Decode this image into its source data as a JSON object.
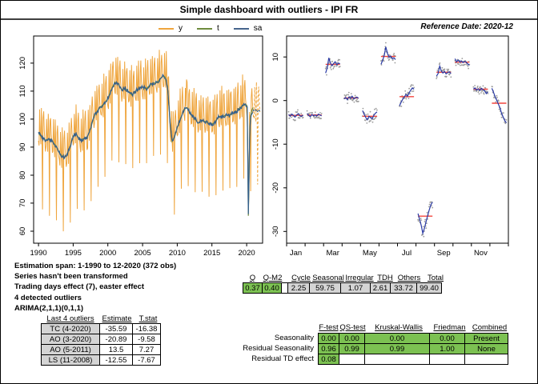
{
  "window": {
    "title": "Simple dashboard with outliers - IPI FR",
    "reference_date": "Reference Date: 2020-12"
  },
  "legend": {
    "items": [
      {
        "label": "y",
        "color": "#efa53d"
      },
      {
        "label": "t",
        "color": "#6e8b3d"
      },
      {
        "label": "sa",
        "color": "#46648c"
      }
    ]
  },
  "summary": {
    "lines": [
      "Estimation span: 1-1990 to 12-2020 (372 obs)",
      "Series hasn't been transformed",
      "Trading days effect (7), easter effect",
      "4 detected outliers",
      "ARIMA(2,1,1)(0,1,1)"
    ]
  },
  "outliers": {
    "headers": [
      "Last 4 outliers",
      "Estimate",
      "T.stat"
    ],
    "rows": [
      [
        "TC (4-2020)",
        "-35.59",
        "-16.38"
      ],
      [
        "AO (3-2020)",
        "-20.89",
        "-9.58"
      ],
      [
        "AO (5-2011)",
        "13.5",
        "7.27"
      ],
      [
        "LS (11-2008)",
        "-12.55",
        "-7.67"
      ]
    ]
  },
  "q_stats": {
    "headers": [
      "Q",
      "Q-M2",
      "Cycle",
      "Seasonal",
      "Irregular",
      "TDH",
      "Others",
      "Total"
    ],
    "values": [
      "0.37",
      "0.40",
      "2.25",
      "59.75",
      "1.07",
      "2.61",
      "33.72",
      "99.40"
    ]
  },
  "tests": {
    "col_headers": [
      "F-test",
      "QS-test",
      "Kruskal-Wallis",
      "Friedman",
      "Combined"
    ],
    "rows": [
      {
        "label": "Seasonality",
        "values": [
          "0.00",
          "0.00",
          "0.00",
          "0.00",
          "Present"
        ]
      },
      {
        "label": "Residual Seasonality",
        "values": [
          "0.96",
          "0.99",
          "0.99",
          "1.00",
          "None"
        ]
      },
      {
        "label": "Residual TD effect",
        "values": [
          "0.08",
          "",
          "",
          "",
          ""
        ]
      }
    ]
  },
  "colors": {
    "series_y": "#efa53d",
    "series_t": "#6e8b3d",
    "series_sa": "#35608d",
    "subseries_line": "#2a3aa6",
    "subseries_mean": "#f2453d",
    "subseries_dots": "#9c9c9c",
    "cell_green": "#7cc152",
    "cell_gray": "#d4d4d4"
  },
  "chart_data": [
    {
      "type": "line",
      "title": "Raw (y), trend (t) and seasonally adjusted (sa) series, monthly 1-1990 to 12-2020, dashed 12-month forecast",
      "x_ticks": [
        1990,
        1995,
        2000,
        2005,
        2010,
        2015,
        2020
      ],
      "y_ticks": [
        60,
        70,
        80,
        90,
        100,
        110,
        120
      ],
      "xlim": [
        1989.3,
        2022.3
      ],
      "ylim": [
        55.7,
        129.7
      ],
      "seasonal_factors": [
        -3.4,
        -3.3,
        8.3,
        0.6,
        -3.6,
        10.1,
        0.9,
        -26.5,
        6.5,
        8.8,
        2.6,
        -0.6
      ],
      "trend_anchors": [
        [
          1990,
          95
        ],
        [
          1990.5,
          93.5
        ],
        [
          1991,
          92.5
        ],
        [
          1991.5,
          92.8
        ],
        [
          1992,
          92
        ],
        [
          1992.5,
          90.5
        ],
        [
          1993,
          88
        ],
        [
          1993.6,
          86.3
        ],
        [
          1994,
          87
        ],
        [
          1994.5,
          89.5
        ],
        [
          1995,
          94
        ],
        [
          1995.4,
          94.8
        ],
        [
          1996,
          92.5
        ],
        [
          1996.5,
          93
        ],
        [
          1997,
          93.5
        ],
        [
          1997.5,
          96.5
        ],
        [
          1998,
          101
        ],
        [
          1998.5,
          103
        ],
        [
          1999,
          104.5
        ],
        [
          1999.5,
          105.5
        ],
        [
          2000,
          107.5
        ],
        [
          2000.5,
          110.5
        ],
        [
          2001,
          113.2
        ],
        [
          2001.5,
          112.5
        ],
        [
          2002,
          110.5
        ],
        [
          2002.5,
          111
        ],
        [
          2003,
          109.8
        ],
        [
          2003.5,
          108.5
        ],
        [
          2004,
          110
        ],
        [
          2004.5,
          111
        ],
        [
          2005,
          111.5
        ],
        [
          2005.5,
          110.8
        ],
        [
          2006,
          112
        ],
        [
          2006.5,
          112.8
        ],
        [
          2007,
          113
        ],
        [
          2007.5,
          114.2
        ],
        [
          2008,
          115.5
        ],
        [
          2008.25,
          115
        ],
        [
          2008.6,
          111.5
        ],
        [
          2009,
          98
        ],
        [
          2009.25,
          92
        ],
        [
          2009.6,
          93.5
        ],
        [
          2010,
          97
        ],
        [
          2010.5,
          100.5
        ],
        [
          2011,
          103.5
        ],
        [
          2011.4,
          104.2
        ],
        [
          2012,
          101.5
        ],
        [
          2012.5,
          100.5
        ],
        [
          2013,
          98.5
        ],
        [
          2013.5,
          99.5
        ],
        [
          2014,
          99.2
        ],
        [
          2014.5,
          98.5
        ],
        [
          2015,
          98.2
        ],
        [
          2015.5,
          99
        ],
        [
          2016,
          101
        ],
        [
          2016.5,
          100.8
        ],
        [
          2017,
          101.5
        ],
        [
          2017.5,
          101.3
        ],
        [
          2018,
          102
        ],
        [
          2018.5,
          102.5
        ],
        [
          2019,
          104
        ],
        [
          2019.5,
          105
        ],
        [
          2020,
          105
        ],
        [
          2020.083,
          104
        ],
        [
          2020.167,
          87
        ],
        [
          2020.25,
          65.5
        ],
        [
          2020.333,
          78
        ],
        [
          2020.417,
          92
        ],
        [
          2020.5,
          97
        ],
        [
          2020.583,
          100
        ],
        [
          2020.667,
          101
        ],
        [
          2020.75,
          102
        ],
        [
          2020.833,
          102.5
        ],
        [
          2020.917,
          103
        ]
      ],
      "outlier_adjustments": [
        {
          "year": 2011,
          "month": 5,
          "effect": 13.5
        },
        {
          "year": 2020,
          "month": 3,
          "effect": -6
        }
      ],
      "forecast": {
        "start_year": 2021,
        "months": 12,
        "trend": 103
      },
      "series_names": [
        "y",
        "t",
        "sa"
      ]
    },
    {
      "type": "monthplot",
      "title": "Seasonal sub-series by month: gray dots = SI ratios per year, blue = seasonal component, red = monthly mean",
      "months": [
        "Jan",
        "Feb",
        "Mar",
        "Apr",
        "May",
        "Jun",
        "Jul",
        "Aug",
        "Sep",
        "Oct",
        "Nov",
        "Dec"
      ],
      "x_tick_labels": [
        "Jan",
        "Mar",
        "May",
        "Jul",
        "Sep",
        "Nov"
      ],
      "y_ticks": [
        10,
        0,
        -10,
        -20,
        -30
      ],
      "ylim": [
        -32.7,
        14.8
      ],
      "n_years": 31,
      "groups": [
        {
          "month": "Jan",
          "mean": -3.4,
          "spread": 1.0,
          "line": [
            -3.2,
            -3.6,
            -3.1,
            -3.4,
            -3.8,
            -3.3,
            -3.0,
            -3.5,
            -3.6,
            -3.4
          ]
        },
        {
          "month": "Feb",
          "mean": -3.3,
          "spread": 1.0,
          "line": [
            -3.0,
            -3.4,
            -3.7,
            -3.2,
            -3.5,
            -3.3,
            -3.6,
            -3.1,
            -3.3,
            -3.5
          ]
        },
        {
          "month": "Mar",
          "mean": 8.3,
          "spread": 1.2,
          "line": [
            6.3,
            7.5,
            9.8,
            8.6,
            8.0,
            8.5,
            8.9,
            8.2,
            8.6,
            8.4
          ]
        },
        {
          "month": "Apr",
          "mean": 0.6,
          "spread": 1.1,
          "line": [
            0.4,
            0.7,
            0.2,
            0.8,
            0.5,
            1.0,
            0.4,
            0.6,
            0.8,
            0.5
          ]
        },
        {
          "month": "May",
          "mean": -3.6,
          "spread": 1.3,
          "line": [
            -2.3,
            -3.1,
            -3.9,
            -4.4,
            -3.6,
            -3.9,
            -4.2,
            -3.4,
            -2.9,
            -2.6
          ]
        },
        {
          "month": "Jun",
          "mean": 10.1,
          "spread": 1.1,
          "line": [
            8.3,
            9.2,
            10.3,
            12.3,
            10.8,
            9.9,
            10.2,
            9.6,
            9.8,
            9.4
          ]
        },
        {
          "month": "Jul",
          "mean": 0.9,
          "spread": 1.1,
          "line": [
            -1.2,
            -0.4,
            0.3,
            0.8,
            1.4,
            1.0,
            1.8,
            2.4,
            2.9,
            2.6
          ]
        },
        {
          "month": "Aug",
          "mean": -26.5,
          "spread": 1.6,
          "line": [
            -25.9,
            -27.2,
            -28.6,
            -30.4,
            -29.3,
            -27.8,
            -26.4,
            -25.1,
            -23.9,
            -23.3
          ]
        },
        {
          "month": "Sep",
          "mean": 6.5,
          "spread": 1.0,
          "line": [
            5.6,
            6.2,
            7.9,
            6.8,
            6.3,
            6.7,
            6.1,
            6.4,
            6.6,
            6.2
          ]
        },
        {
          "month": "Oct",
          "mean": 8.8,
          "spread": 1.1,
          "line": [
            9.6,
            8.9,
            9.3,
            8.8,
            9.1,
            8.7,
            9.0,
            8.8,
            8.4,
            8.1
          ]
        },
        {
          "month": "Nov",
          "mean": 2.6,
          "spread": 1.0,
          "line": [
            2.6,
            2.9,
            2.4,
            2.7,
            2.3,
            2.8,
            2.5,
            2.2,
            1.6,
            2.0
          ]
        },
        {
          "month": "Dec",
          "mean": -0.6,
          "spread": 1.2,
          "line": [
            2.8,
            1.9,
            0.9,
            0.1,
            -0.8,
            -1.7,
            -2.9,
            -3.8,
            -4.6,
            -5.1
          ]
        }
      ]
    }
  ]
}
